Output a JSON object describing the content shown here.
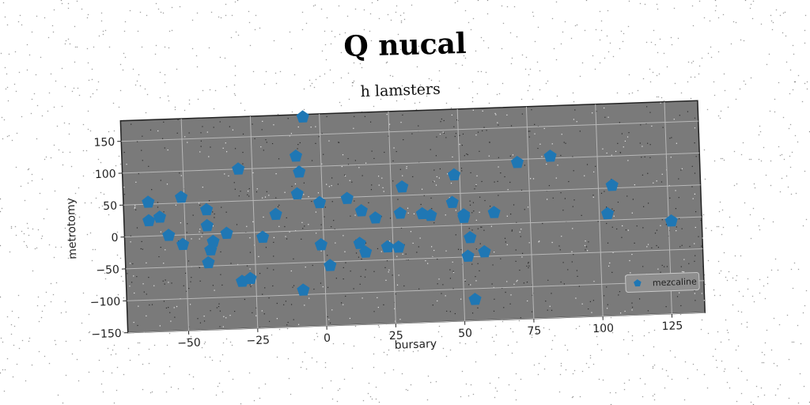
{
  "title": "Q nucal",
  "chart_data": {
    "type": "scatter",
    "subtitle": "h lamsters",
    "xlabel": "bursary",
    "ylabel": "metrotomy",
    "xlim": [
      -72,
      137
    ],
    "ylim": [
      -150,
      182
    ],
    "xticks": [
      -50,
      -25,
      0,
      25,
      50,
      75,
      100,
      125
    ],
    "yticks": [
      150,
      100,
      50,
      0,
      -50,
      -100,
      -150
    ],
    "grid": true,
    "legend_position": "bottom-right",
    "marker": "pentagon",
    "colors": {
      "plot_bg": "#7a7a7a",
      "marker": "#1f77b4",
      "grid": "#b8b8b8"
    },
    "series": [
      {
        "name": "mezcaline",
        "points": [
          [
            -63,
            53
          ],
          [
            -63,
            24
          ],
          [
            -59,
            29
          ],
          [
            -56,
            0
          ],
          [
            -51,
            -15
          ],
          [
            -51,
            59
          ],
          [
            -42,
            38
          ],
          [
            -42,
            13
          ],
          [
            -40,
            -12
          ],
          [
            -41,
            -25
          ],
          [
            -42,
            -45
          ],
          [
            -35,
            0
          ],
          [
            -30,
            100
          ],
          [
            -30,
            -76
          ],
          [
            -27,
            -72
          ],
          [
            -22,
            -8
          ],
          [
            -17,
            27
          ],
          [
            -9,
            117
          ],
          [
            -9,
            58
          ],
          [
            -8,
            92
          ],
          [
            -8,
            -93
          ],
          [
            -6,
            178
          ],
          [
            -1,
            43
          ],
          [
            -1,
            -23
          ],
          [
            2,
            -56
          ],
          [
            9,
            48
          ],
          [
            13,
            -23
          ],
          [
            14,
            28
          ],
          [
            15,
            -37
          ],
          [
            19,
            16
          ],
          [
            23,
            -30
          ],
          [
            27,
            -31
          ],
          [
            28,
            22
          ],
          [
            29,
            63
          ],
          [
            36,
            20
          ],
          [
            39,
            17
          ],
          [
            47,
            36
          ],
          [
            48,
            79
          ],
          [
            51,
            16
          ],
          [
            51,
            12
          ],
          [
            52,
            -49
          ],
          [
            53,
            -20
          ],
          [
            54,
            -117
          ],
          [
            58,
            -43
          ],
          [
            62,
            18
          ],
          [
            71,
            95
          ],
          [
            83,
            103
          ],
          [
            103,
            10
          ],
          [
            105,
            54
          ],
          [
            126,
            -5
          ]
        ]
      }
    ]
  }
}
